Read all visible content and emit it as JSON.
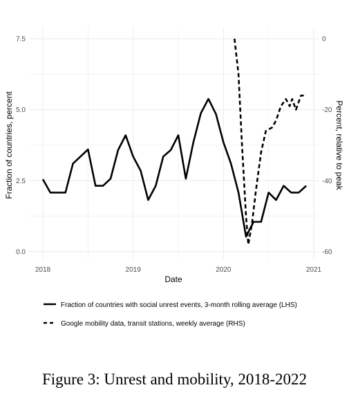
{
  "figure": {
    "caption": "Figure 3: Unrest and mobility, 2018-2022"
  },
  "chart_data": {
    "type": "line",
    "title": "",
    "xlabel": "Date",
    "ylabel_left": "Fraction of countries, percent",
    "ylabel_right": "Percent, relative to peak",
    "x_ticks": [
      "2018",
      "2019",
      "2020",
      "2021"
    ],
    "y_left_ticks": [
      "0.0",
      "2.5",
      "5.0",
      "7.5"
    ],
    "y_right_ticks": [
      "0",
      "-20",
      "-40",
      "-60"
    ],
    "ylim_left": [
      0.0,
      7.5
    ],
    "ylim_right": [
      -60,
      0
    ],
    "xlim": [
      "2018-01",
      "2020-12"
    ],
    "grid": true,
    "legend_placement": "bottom",
    "colors": {
      "line": "#000000",
      "grid": "#ebebeb"
    },
    "series": [
      {
        "name": "Fraction of countries with social unrest events, 3-month rolling average (LHS)",
        "axis": "left",
        "style": "solid",
        "points": [
          {
            "x": "2018-01",
            "y": 2.55
          },
          {
            "x": "2018-02",
            "y": 2.08
          },
          {
            "x": "2018-03",
            "y": 2.08
          },
          {
            "x": "2018-04",
            "y": 2.08
          },
          {
            "x": "2018-05",
            "y": 3.1
          },
          {
            "x": "2018-06",
            "y": 3.35
          },
          {
            "x": "2018-07",
            "y": 3.6
          },
          {
            "x": "2018-08",
            "y": 2.32
          },
          {
            "x": "2018-09",
            "y": 2.32
          },
          {
            "x": "2018-10",
            "y": 2.57
          },
          {
            "x": "2018-11",
            "y": 3.58
          },
          {
            "x": "2018-12",
            "y": 4.1
          },
          {
            "x": "2019-01",
            "y": 3.35
          },
          {
            "x": "2019-02",
            "y": 2.85
          },
          {
            "x": "2019-03",
            "y": 1.82
          },
          {
            "x": "2019-04",
            "y": 2.32
          },
          {
            "x": "2019-05",
            "y": 3.35
          },
          {
            "x": "2019-06",
            "y": 3.58
          },
          {
            "x": "2019-07",
            "y": 4.1
          },
          {
            "x": "2019-08",
            "y": 2.57
          },
          {
            "x": "2019-09",
            "y": 3.85
          },
          {
            "x": "2019-10",
            "y": 4.88
          },
          {
            "x": "2019-11",
            "y": 5.38
          },
          {
            "x": "2019-12",
            "y": 4.85
          },
          {
            "x": "2020-01",
            "y": 3.85
          },
          {
            "x": "2020-02",
            "y": 3.1
          },
          {
            "x": "2020-03",
            "y": 2.08
          },
          {
            "x": "2020-04",
            "y": 0.53
          },
          {
            "x": "2020-05",
            "y": 1.05
          },
          {
            "x": "2020-06",
            "y": 1.05
          },
          {
            "x": "2020-07",
            "y": 2.08
          },
          {
            "x": "2020-08",
            "y": 1.82
          },
          {
            "x": "2020-09",
            "y": 2.32
          },
          {
            "x": "2020-10",
            "y": 2.08
          },
          {
            "x": "2020-11",
            "y": 2.08
          },
          {
            "x": "2020-12",
            "y": 2.32
          }
        ]
      },
      {
        "name": "Google mobility data, transit stations, weekly average (RHS)",
        "axis": "right",
        "style": "dashed",
        "points": [
          {
            "x": "2020-02-15",
            "y": 0
          },
          {
            "x": "2020-03-01",
            "y": -10
          },
          {
            "x": "2020-03-15",
            "y": -30
          },
          {
            "x": "2020-04-01",
            "y": -50
          },
          {
            "x": "2020-04-10",
            "y": -58
          },
          {
            "x": "2020-04-25",
            "y": -52
          },
          {
            "x": "2020-05-10",
            "y": -43
          },
          {
            "x": "2020-06-01",
            "y": -32
          },
          {
            "x": "2020-06-20",
            "y": -26
          },
          {
            "x": "2020-07-15",
            "y": -25
          },
          {
            "x": "2020-08-01",
            "y": -23
          },
          {
            "x": "2020-08-20",
            "y": -19
          },
          {
            "x": "2020-09-10",
            "y": -17
          },
          {
            "x": "2020-09-25",
            "y": -19
          },
          {
            "x": "2020-10-05",
            "y": -17
          },
          {
            "x": "2020-10-20",
            "y": -20
          },
          {
            "x": "2020-11-10",
            "y": -16
          },
          {
            "x": "2020-11-25",
            "y": -16
          }
        ]
      }
    ]
  }
}
